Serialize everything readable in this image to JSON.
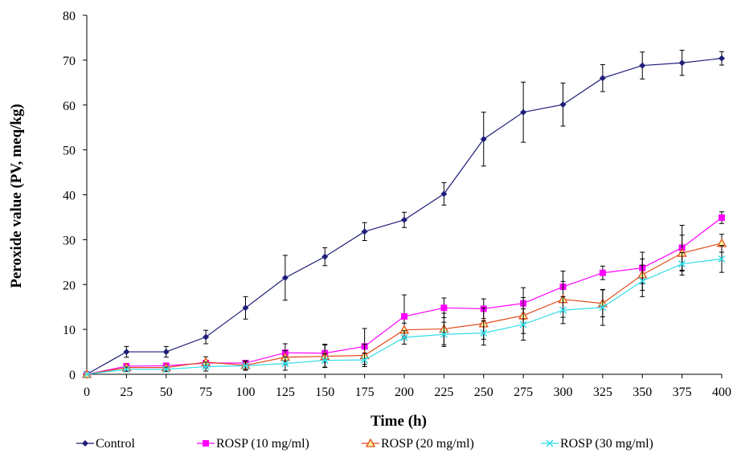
{
  "chart_data": {
    "type": "line",
    "title": "",
    "xlabel": "Time (h)",
    "ylabel": "Peroxide value (PV, meq/kg)",
    "xlim": [
      0,
      400
    ],
    "ylim": [
      0,
      80
    ],
    "x": [
      0,
      25,
      50,
      75,
      100,
      125,
      150,
      175,
      200,
      225,
      250,
      275,
      300,
      325,
      350,
      375,
      400
    ],
    "x_ticks": [
      0,
      25,
      50,
      75,
      100,
      125,
      150,
      175,
      200,
      225,
      250,
      275,
      300,
      325,
      350,
      375,
      400
    ],
    "y_ticks": [
      0,
      10,
      20,
      30,
      40,
      50,
      60,
      70,
      80
    ],
    "grid": false,
    "legend_position": "bottom",
    "series": [
      {
        "name": "Control",
        "color": "#1f1f7a",
        "marker": "diamond",
        "values": [
          0,
          5,
          5,
          8.3,
          14.8,
          21.5,
          26.2,
          31.8,
          34.4,
          40.2,
          52.4,
          58.4,
          60.1,
          66,
          68.8,
          69.4,
          70.4
        ],
        "errors": [
          0,
          1.2,
          1.2,
          1.5,
          2.5,
          5,
          2,
          2,
          1.7,
          2.5,
          6,
          6.7,
          4.8,
          3,
          3,
          2.8,
          1.5
        ]
      },
      {
        "name": "ROSP (10 mg/ml)",
        "color": "#ff00ff",
        "marker": "square",
        "values": [
          0,
          1.8,
          1.9,
          2.5,
          2.5,
          4.8,
          4.7,
          6.2,
          12.9,
          14.8,
          14.6,
          15.8,
          19.5,
          22.6,
          23.7,
          28.2,
          34.9
        ],
        "errors": [
          0,
          0,
          0,
          0,
          0,
          2,
          2,
          4,
          4.8,
          2.2,
          2.2,
          3.5,
          3.5,
          1.5,
          3.5,
          5,
          1.3
        ]
      },
      {
        "name": "ROSP (20 mg/ml)",
        "color": "#e04a1a",
        "marker": "triangle",
        "values": [
          0,
          1.5,
          1.5,
          2.7,
          2,
          3.8,
          4,
          4.2,
          9.9,
          10.1,
          11.3,
          13.1,
          16.7,
          15.8,
          22.2,
          27,
          29.2
        ],
        "errors": [
          0,
          0,
          0,
          1.2,
          1,
          1.5,
          2.5,
          2.5,
          1.5,
          3.5,
          3.5,
          4,
          4,
          3,
          3.5,
          4,
          2
        ]
      },
      {
        "name": "ROSP (30 mg/ml)",
        "color": "#33dde8",
        "marker": "x",
        "values": [
          0,
          1.1,
          1.1,
          1.7,
          1.9,
          2.4,
          3.1,
          3.2,
          8.2,
          8.9,
          9.2,
          11.1,
          14.3,
          14.9,
          20.8,
          24.6,
          25.7
        ],
        "errors": [
          0,
          0.5,
          0.5,
          1,
          1,
          1.5,
          1.5,
          1.5,
          1.5,
          2.7,
          2.7,
          3.5,
          3,
          4,
          3.5,
          2.5,
          3
        ]
      }
    ]
  }
}
